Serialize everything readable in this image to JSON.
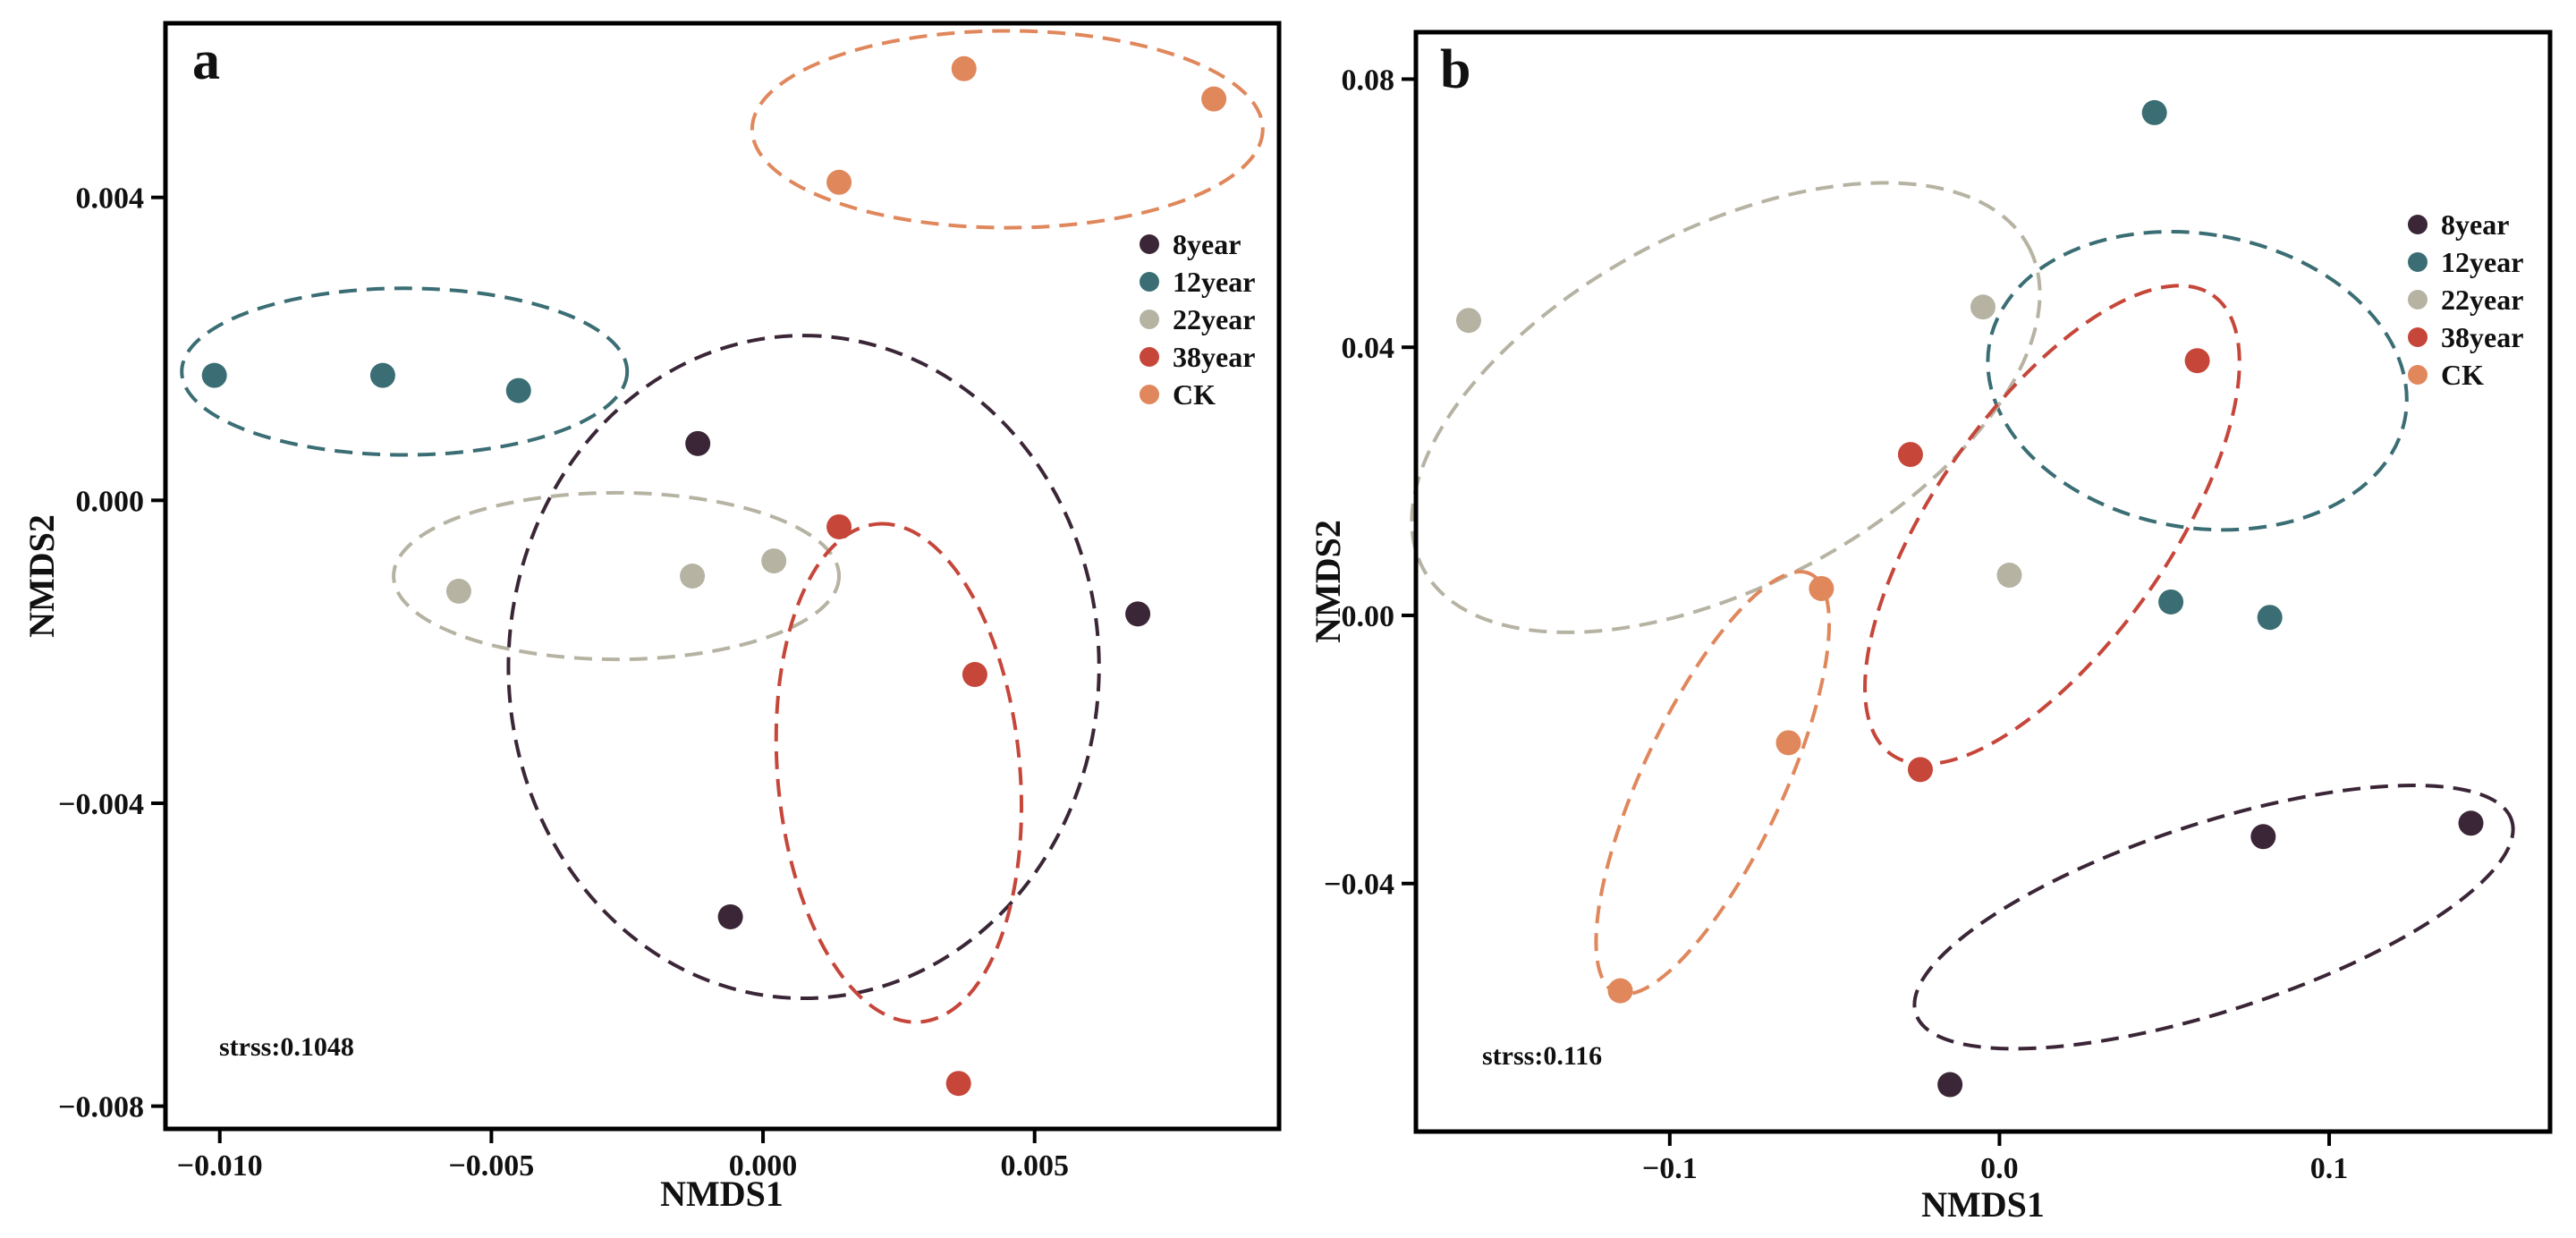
{
  "chart_data": [
    {
      "type": "scatter",
      "panel_label": "a",
      "xlabel": "NMDS1",
      "ylabel": "NMDS2",
      "xlim": [
        -0.011,
        0.0095
      ],
      "ylim": [
        -0.0083,
        0.0063
      ],
      "xticks": [
        -0.01,
        -0.005,
        0.0,
        0.005
      ],
      "xtick_labels": [
        "−0.010",
        "−0.005",
        "0.000",
        "0.005"
      ],
      "yticks": [
        0.004,
        0.0,
        -0.004,
        -0.008
      ],
      "ytick_labels": [
        "0.004",
        "0.000",
        "−0.004",
        "−0.008"
      ],
      "stress_text": "strss:0.1048",
      "legend_position": "top-right",
      "grid": false,
      "series": [
        {
          "name": "8year",
          "color": "#3b2637",
          "points": [
            [
              -0.0012,
              0.00075
            ],
            [
              0.0069,
              -0.0015
            ],
            [
              -0.0006,
              -0.0055
            ]
          ],
          "ellipse": {
            "cx": 0.00075,
            "cy": -0.0022,
            "rx": 0.0061,
            "ry": 0.0039,
            "angle_deg": -90
          }
        },
        {
          "name": "12year",
          "color": "#3a6e74",
          "points": [
            [
              -0.0101,
              0.00165
            ],
            [
              -0.007,
              0.00165
            ],
            [
              -0.0045,
              0.00145
            ]
          ],
          "ellipse": {
            "cx": -0.0066,
            "cy": 0.0017,
            "rx": 0.0041,
            "ry": 0.0011,
            "angle_deg": 0
          }
        },
        {
          "name": "22year",
          "color": "#b6b3a3",
          "points": [
            [
              -0.0056,
              -0.0012
            ],
            [
              -0.0013,
              -0.001
            ],
            [
              0.0002,
              -0.0008
            ]
          ],
          "ellipse": {
            "cx": -0.0027,
            "cy": -0.001,
            "rx": 0.0041,
            "ry": 0.0011,
            "angle_deg": 0
          }
        },
        {
          "name": "38year",
          "color": "#c6463a",
          "points": [
            [
              0.0014,
              -0.00035
            ],
            [
              0.0039,
              -0.0023
            ],
            [
              0.0036,
              -0.0077
            ]
          ],
          "ellipse": {
            "cx": 0.0025,
            "cy": -0.0036,
            "rx": 0.0046,
            "ry": 0.0016,
            "angle_deg": -95
          }
        },
        {
          "name": "CK",
          "color": "#e0875c",
          "points": [
            [
              0.0037,
              0.0057
            ],
            [
              0.0083,
              0.0053
            ],
            [
              0.0014,
              0.0042
            ]
          ],
          "ellipse": {
            "cx": 0.0045,
            "cy": 0.0049,
            "rx": 0.0047,
            "ry": 0.0013,
            "angle_deg": 0
          }
        }
      ]
    },
    {
      "type": "scatter",
      "panel_label": "b",
      "xlabel": "NMDS1",
      "ylabel": "NMDS2",
      "xlim": [
        -0.177,
        0.167
      ],
      "ylim": [
        -0.077,
        0.087
      ],
      "xticks": [
        -0.1,
        0.0,
        0.1
      ],
      "xtick_labels": [
        "−0.1",
        "0.0",
        "0.1"
      ],
      "yticks": [
        0.08,
        0.04,
        0.0,
        -0.04
      ],
      "ytick_labels": [
        "0.08",
        "0.04",
        "0.00",
        "−0.04"
      ],
      "stress_text": "strss:0.116",
      "legend_position": "top-right",
      "grid": false,
      "series": [
        {
          "name": "8year",
          "color": "#3b2637",
          "points": [
            [
              0.08,
              -0.033
            ],
            [
              0.143,
              -0.031
            ],
            [
              -0.015,
              -0.07
            ]
          ],
          "ellipse": {
            "cx": 0.065,
            "cy": -0.045,
            "rx": 0.095,
            "ry": 0.014,
            "angle_deg": -18
          }
        },
        {
          "name": "12year",
          "color": "#3a6e74",
          "points": [
            [
              0.047,
              0.075
            ],
            [
              0.052,
              0.002
            ],
            [
              0.082,
              -0.0003
            ]
          ],
          "ellipse": {
            "cx": 0.06,
            "cy": 0.035,
            "rx": 0.0445,
            "ry": 0.0315,
            "angle_deg": -80
          }
        },
        {
          "name": "22year",
          "color": "#b6b3a3",
          "points": [
            [
              -0.161,
              0.044
            ],
            [
              -0.005,
              0.046
            ],
            [
              0.003,
              0.006
            ]
          ],
          "ellipse": {
            "cx": -0.083,
            "cy": 0.031,
            "rx": 0.104,
            "ry": 0.0265,
            "angle_deg": -28
          }
        },
        {
          "name": "38year",
          "color": "#c6463a",
          "points": [
            [
              0.06,
              0.038
            ],
            [
              -0.027,
              0.024
            ],
            [
              -0.024,
              -0.023
            ]
          ],
          "ellipse": {
            "cx": 0.016,
            "cy": 0.0135,
            "rx": 0.085,
            "ry": 0.0175,
            "angle_deg": -55
          }
        },
        {
          "name": "CK",
          "color": "#e0875c",
          "points": [
            [
              -0.054,
              0.004
            ],
            [
              -0.064,
              -0.019
            ],
            [
              -0.115,
              -0.056
            ]
          ],
          "ellipse": {
            "cx": -0.087,
            "cy": -0.025,
            "rx": 0.07,
            "ry": 0.0105,
            "angle_deg": -65
          }
        }
      ]
    }
  ]
}
